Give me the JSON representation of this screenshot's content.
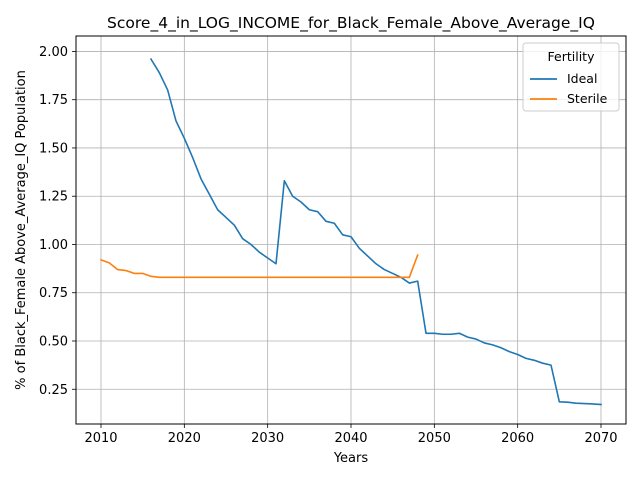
{
  "chart_data": {
    "type": "line",
    "title": "Score_4_in_LOG_INCOME_for_Black_Female_Above_Average_IQ",
    "xlabel": "Years",
    "ylabel": "% of Black_Female Above_Average_IQ Population",
    "xlim": [
      2007,
      2073
    ],
    "ylim": [
      0.07,
      2.08
    ],
    "xticks": [
      2010,
      2020,
      2030,
      2040,
      2050,
      2060,
      2070
    ],
    "yticks": [
      0.25,
      0.5,
      0.75,
      1.0,
      1.25,
      1.5,
      1.75,
      2.0
    ],
    "xtick_labels": [
      "2010",
      "2020",
      "2030",
      "2040",
      "2050",
      "2060",
      "2070"
    ],
    "ytick_labels": [
      "0.25",
      "0.50",
      "0.75",
      "1.00",
      "1.25",
      "1.50",
      "1.75",
      "2.00"
    ],
    "grid": true,
    "legend": {
      "title": "Fertility",
      "placement": "top-right"
    },
    "series": [
      {
        "name": "Ideal",
        "color": "#1f77b4",
        "points": [
          [
            2016,
            1.96
          ],
          [
            2017,
            1.89
          ],
          [
            2018,
            1.8
          ],
          [
            2019,
            1.64
          ],
          [
            2020,
            1.55
          ],
          [
            2021,
            1.45
          ],
          [
            2022,
            1.34
          ],
          [
            2023,
            1.26
          ],
          [
            2024,
            1.18
          ],
          [
            2025,
            1.14
          ],
          [
            2026,
            1.1
          ],
          [
            2027,
            1.03
          ],
          [
            2028,
            1.0
          ],
          [
            2029,
            0.96
          ],
          [
            2030,
            0.93
          ],
          [
            2031,
            0.9
          ],
          [
            2032,
            1.33
          ],
          [
            2033,
            1.25
          ],
          [
            2034,
            1.22
          ],
          [
            2035,
            1.18
          ],
          [
            2036,
            1.17
          ],
          [
            2037,
            1.12
          ],
          [
            2038,
            1.11
          ],
          [
            2039,
            1.05
          ],
          [
            2040,
            1.04
          ],
          [
            2041,
            0.98
          ],
          [
            2042,
            0.94
          ],
          [
            2043,
            0.9
          ],
          [
            2044,
            0.87
          ],
          [
            2045,
            0.85
          ],
          [
            2046,
            0.83
          ],
          [
            2047,
            0.8
          ],
          [
            2048,
            0.81
          ],
          [
            2049,
            0.54
          ],
          [
            2050,
            0.54
          ],
          [
            2051,
            0.535
          ],
          [
            2052,
            0.535
          ],
          [
            2053,
            0.54
          ],
          [
            2054,
            0.52
          ],
          [
            2055,
            0.51
          ],
          [
            2056,
            0.49
          ],
          [
            2057,
            0.48
          ],
          [
            2058,
            0.465
          ],
          [
            2059,
            0.445
          ],
          [
            2060,
            0.43
          ],
          [
            2061,
            0.41
          ],
          [
            2062,
            0.4
          ],
          [
            2063,
            0.385
          ],
          [
            2064,
            0.375
          ],
          [
            2065,
            0.185
          ],
          [
            2066,
            0.183
          ],
          [
            2067,
            0.178
          ],
          [
            2068,
            0.176
          ],
          [
            2069,
            0.174
          ],
          [
            2070,
            0.171
          ]
        ]
      },
      {
        "name": "Sterile",
        "color": "#ff7f0e",
        "points": [
          [
            2010,
            0.92
          ],
          [
            2011,
            0.905
          ],
          [
            2012,
            0.87
          ],
          [
            2013,
            0.865
          ],
          [
            2014,
            0.85
          ],
          [
            2015,
            0.85
          ],
          [
            2016,
            0.835
          ],
          [
            2017,
            0.83
          ],
          [
            2018,
            0.83
          ],
          [
            2019,
            0.83
          ],
          [
            2020,
            0.83
          ],
          [
            2021,
            0.83
          ],
          [
            2022,
            0.83
          ],
          [
            2023,
            0.83
          ],
          [
            2024,
            0.83
          ],
          [
            2025,
            0.83
          ],
          [
            2026,
            0.83
          ],
          [
            2027,
            0.83
          ],
          [
            2028,
            0.83
          ],
          [
            2029,
            0.83
          ],
          [
            2030,
            0.83
          ],
          [
            2031,
            0.83
          ],
          [
            2032,
            0.83
          ],
          [
            2033,
            0.83
          ],
          [
            2034,
            0.83
          ],
          [
            2035,
            0.83
          ],
          [
            2036,
            0.83
          ],
          [
            2037,
            0.83
          ],
          [
            2038,
            0.83
          ],
          [
            2039,
            0.83
          ],
          [
            2040,
            0.83
          ],
          [
            2041,
            0.83
          ],
          [
            2042,
            0.83
          ],
          [
            2043,
            0.83
          ],
          [
            2044,
            0.83
          ],
          [
            2045,
            0.83
          ],
          [
            2046,
            0.83
          ],
          [
            2047,
            0.83
          ],
          [
            2048,
            0.945
          ]
        ]
      }
    ]
  }
}
